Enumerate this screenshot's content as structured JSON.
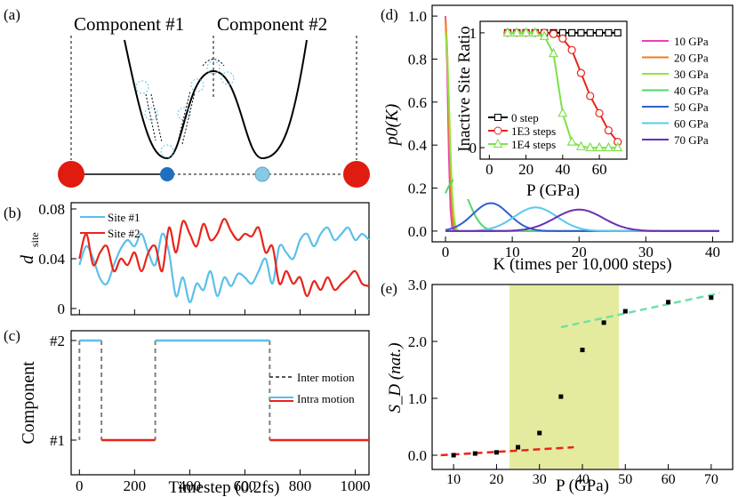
{
  "panel_labels": {
    "a": "(a)",
    "b": "(b)",
    "c": "(c)",
    "d": "(d)",
    "e": "(e)"
  },
  "panel_a": {
    "component1_label": "Component #1",
    "component2_label": "Component #2"
  },
  "colors": {
    "site1": "#5bc0eb",
    "site2": "#e8241a",
    "inter": "#808080",
    "shade": "#e4eb9e",
    "red_ball": "#e01b10",
    "blue_ball": "#1f6fc0"
  },
  "chart_data": [
    {
      "id": "b",
      "type": "line",
      "ylabel": "d",
      "ylabel_sub": "site",
      "xlim": [
        -30,
        1050
      ],
      "ylim": [
        -0.005,
        0.085
      ],
      "yticks": [
        "0",
        "0.04",
        "0.08"
      ],
      "ytick_values": [
        0,
        0.04,
        0.08
      ],
      "legend": [
        "Site #1",
        "Site #2"
      ],
      "series": [
        {
          "name": "Site #1",
          "x": [
            0,
            25,
            50,
            75,
            100,
            125,
            150,
            175,
            200,
            225,
            250,
            275,
            300,
            325,
            350,
            375,
            400,
            425,
            450,
            475,
            500,
            525,
            550,
            575,
            600,
            625,
            650,
            675,
            700,
            725,
            750,
            775,
            800,
            825,
            850,
            875,
            900,
            925,
            950,
            975,
            1000,
            1025,
            1050
          ],
          "y": [
            0.035,
            0.05,
            0.04,
            0.024,
            0.02,
            0.035,
            0.048,
            0.055,
            0.05,
            0.06,
            0.045,
            0.035,
            0.06,
            0.045,
            0.01,
            0.025,
            0.005,
            0.02,
            0.015,
            0.03,
            0.01,
            0.025,
            0.018,
            0.028,
            0.025,
            0.02,
            0.03,
            0.04,
            0.02,
            0.05,
            0.045,
            0.04,
            0.055,
            0.06,
            0.05,
            0.06,
            0.065,
            0.055,
            0.06,
            0.065,
            0.055,
            0.06,
            0.055
          ]
        },
        {
          "name": "Site #2",
          "x": [
            0,
            25,
            50,
            75,
            100,
            125,
            150,
            175,
            200,
            225,
            250,
            275,
            300,
            325,
            350,
            375,
            400,
            425,
            450,
            475,
            500,
            525,
            550,
            575,
            600,
            625,
            650,
            675,
            700,
            725,
            750,
            775,
            800,
            825,
            850,
            875,
            900,
            925,
            950,
            975,
            1000,
            1025,
            1050
          ],
          "y": [
            0.04,
            0.06,
            0.035,
            0.045,
            0.05,
            0.03,
            0.04,
            0.035,
            0.045,
            0.03,
            0.045,
            0.05,
            0.03,
            0.065,
            0.045,
            0.07,
            0.06,
            0.05,
            0.068,
            0.055,
            0.06,
            0.072,
            0.062,
            0.055,
            0.06,
            0.058,
            0.065,
            0.045,
            0.05,
            0.02,
            0.03,
            0.02,
            0.025,
            0.01,
            0.022,
            0.015,
            0.025,
            0.015,
            0.02,
            0.025,
            0.03,
            0.02,
            0.018
          ]
        }
      ]
    },
    {
      "id": "c",
      "type": "line",
      "xlabel": "Timestep (0.2fs)",
      "ylabel": "Component",
      "xlim": [
        -30,
        1050
      ],
      "xticks": [
        "0",
        "200",
        "400",
        "600",
        "800",
        "1000"
      ],
      "xtick_values": [
        0,
        200,
        400,
        600,
        800,
        1000
      ],
      "yticks": [
        "#1",
        "#2"
      ],
      "legend": [
        "Inter motion",
        "Intra motion"
      ],
      "segments": [
        {
          "motion": "Intra motion",
          "component": 2,
          "x": [
            0,
            80
          ]
        },
        {
          "motion": "Intra motion",
          "component": 1,
          "x": [
            80,
            275
          ]
        },
        {
          "motion": "Intra motion",
          "component": 2,
          "x": [
            275,
            690
          ]
        },
        {
          "motion": "Intra motion",
          "component": 1,
          "x": [
            690,
            1050
          ]
        }
      ],
      "transitions": [
        0,
        80,
        275,
        690
      ]
    },
    {
      "id": "d",
      "type": "line",
      "xlabel": "K (times per 10,000 steps)",
      "ylabel": "p0(K)",
      "xlim": [
        -2,
        43
      ],
      "ylim": [
        -0.05,
        1.05
      ],
      "xticks": [
        "0",
        "10",
        "20",
        "30",
        "40"
      ],
      "xtick_values": [
        0,
        10,
        20,
        30,
        40
      ],
      "yticks": [
        "0.0",
        "0.2",
        "0.4",
        "0.6",
        "0.8",
        "1.0"
      ],
      "ytick_values": [
        0,
        0.2,
        0.4,
        0.6,
        0.8,
        1.0
      ],
      "series": [
        {
          "name": "10 GPa",
          "color": "#ee3fb7",
          "center": 0,
          "sigma": 0.35,
          "peak": 1.0
        },
        {
          "name": "20 GPa",
          "color": "#f07d18",
          "center": 0,
          "sigma": 0.45,
          "peak": 0.99
        },
        {
          "name": "30 GPa",
          "color": "#8ee63c",
          "center": 0,
          "sigma": 0.55,
          "peak": 0.93
        },
        {
          "name": "40 GPa",
          "color": "#52d66d",
          "center": 1.5,
          "sigma": 1.9,
          "peak": 0.24
        },
        {
          "name": "50 GPa",
          "color": "#2f5fd0",
          "center": 6.8,
          "sigma": 2.7,
          "peak": 0.13
        },
        {
          "name": "60 GPa",
          "color": "#5ac8ee",
          "center": 13.5,
          "sigma": 3.2,
          "peak": 0.11
        },
        {
          "name": "70 GPa",
          "color": "#6a2fb4",
          "center": 20,
          "sigma": 3.6,
          "peak": 0.1
        }
      ],
      "inset": {
        "xlabel": "P (GPa)",
        "ylabel": "Inactive Site Ratio",
        "xlim": [
          -5,
          75
        ],
        "ylim": [
          -0.1,
          1.1
        ],
        "xticks": [
          "0",
          "20",
          "40",
          "60"
        ],
        "xtick_values": [
          0,
          20,
          40,
          60
        ],
        "yticks": [
          "0",
          "1"
        ],
        "ytick_values": [
          0,
          1
        ],
        "series": [
          {
            "name": "0 step",
            "color": "#000000",
            "marker": "square",
            "x": [
              10,
              15,
              20,
              25,
              30,
              35,
              40,
              45,
              50,
              55,
              60,
              65,
              70
            ],
            "y": [
              1,
              1,
              1,
              1,
              1,
              1,
              1,
              1,
              1,
              1,
              1,
              1,
              1
            ]
          },
          {
            "name": "1E3 steps",
            "color": "#e8241a",
            "marker": "circle",
            "x": [
              10,
              15,
              20,
              25,
              30,
              35,
              40,
              45,
              50,
              55,
              60,
              65,
              70
            ],
            "y": [
              1,
              1,
              1,
              1,
              1,
              0.99,
              0.95,
              0.85,
              0.65,
              0.45,
              0.3,
              0.15,
              0.05
            ]
          },
          {
            "name": "1E4 steps",
            "color": "#7ee04a",
            "marker": "triangle",
            "x": [
              10,
              15,
              20,
              25,
              30,
              35,
              40,
              45,
              50,
              55,
              60,
              65,
              70
            ],
            "y": [
              1,
              1,
              1,
              1,
              0.97,
              0.82,
              0.3,
              0.05,
              0.01,
              0,
              0,
              0,
              0
            ]
          }
        ]
      }
    },
    {
      "id": "e",
      "type": "scatter",
      "xlabel": "P (GPa)",
      "ylabel": "S_D (nat.)",
      "xlim": [
        5,
        75
      ],
      "ylim": [
        -0.25,
        3.0
      ],
      "xticks": [
        "10",
        "20",
        "30",
        "40",
        "50",
        "60",
        "70"
      ],
      "xtick_values": [
        10,
        20,
        30,
        40,
        50,
        60,
        70
      ],
      "yticks": [
        "0.0",
        "1.0",
        "2.0",
        "3.0"
      ],
      "ytick_values": [
        0,
        1,
        2,
        3
      ],
      "shaded_range": [
        23,
        48.5
      ],
      "points": {
        "x": [
          10,
          15,
          20,
          25,
          30,
          35,
          40,
          45,
          50,
          60,
          70
        ],
        "y": [
          0.0,
          0.03,
          0.05,
          0.14,
          0.39,
          1.03,
          1.85,
          2.33,
          2.53,
          2.69,
          2.77
        ]
      },
      "fit_low": {
        "x": [
          7,
          38
        ],
        "y": [
          0.0,
          0.14
        ],
        "color": "#e8241a"
      },
      "fit_high": {
        "x": [
          35,
          72
        ],
        "y": [
          2.25,
          2.85
        ],
        "color": "#70e0a8"
      }
    }
  ]
}
